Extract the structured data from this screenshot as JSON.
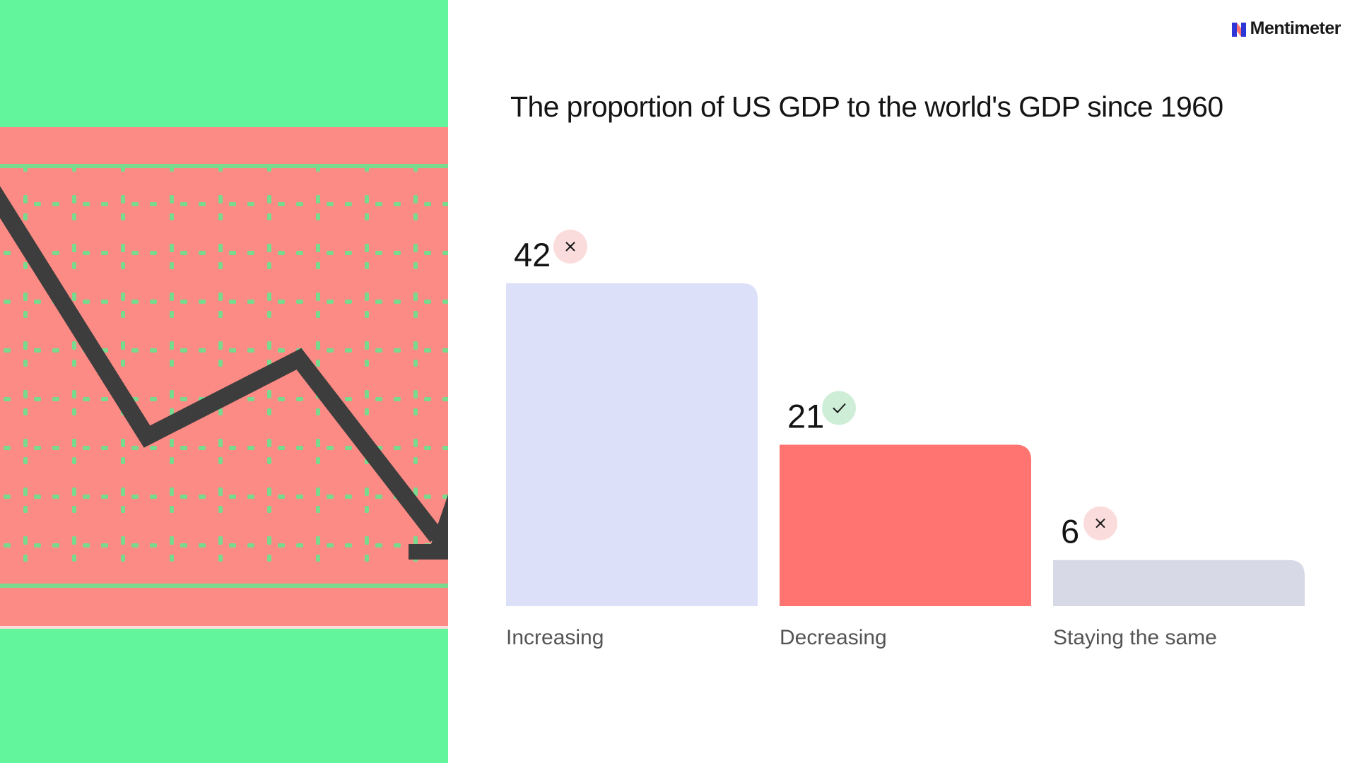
{
  "brand": {
    "name": "Mentimeter",
    "logo_icon": "mentimeter-logo-icon"
  },
  "question": {
    "title": "The proportion of US GDP to the world's GDP since 1960"
  },
  "illustration": {
    "icon": "declining-chart-arrow-illustration",
    "colors": {
      "background": "#62f59c",
      "band": "#fb8b84",
      "arrow": "#3d3d3d"
    }
  },
  "chart_data": {
    "type": "bar",
    "categories": [
      "Increasing",
      "Decreasing",
      "Staying the same"
    ],
    "values": [
      42,
      21,
      6
    ],
    "correct": [
      false,
      true,
      false
    ],
    "colors": [
      "#dce0f9",
      "#ff7470",
      "#d8d9e6"
    ],
    "status_colors": {
      "incorrect_bg": "#fbdcdc",
      "correct_bg": "#cfeed7"
    },
    "ylim": [
      0,
      42
    ]
  }
}
